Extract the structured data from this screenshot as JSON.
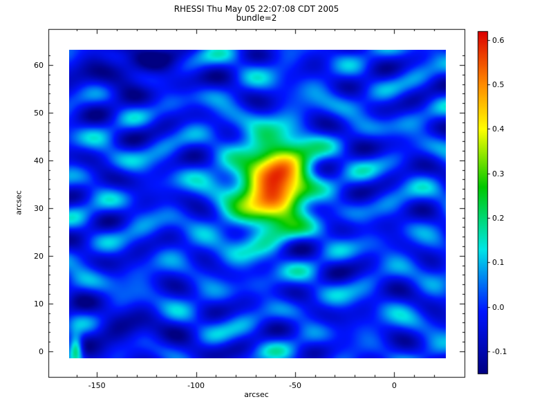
{
  "chart_data": {
    "type": "heatmap",
    "title": "RHESSI Thu May 05 22:07:08 CDT 2005",
    "subtitle": "bundle=2",
    "xlabel": "arcsec",
    "ylabel": "arcsec",
    "x_range": [
      -164,
      26
    ],
    "y_range": [
      -1.5,
      63.2
    ],
    "x_ticks": [
      -150,
      -100,
      -50,
      0
    ],
    "x_minor_step": 10,
    "y_ticks": [
      0,
      10,
      20,
      30,
      40,
      50,
      60
    ],
    "y_minor_step": 2,
    "value_range": [
      -0.15,
      0.62
    ],
    "grid": false,
    "legend_position": "colorbar-right",
    "peak": {
      "x": -60,
      "y": 35,
      "value": 0.62
    },
    "colorbar_ticks": [
      {
        "value": 0.6,
        "label": "0.6"
      },
      {
        "value": 0.5,
        "label": "0.5"
      },
      {
        "value": 0.4,
        "label": "0.4"
      },
      {
        "value": 0.3,
        "label": "0.3"
      },
      {
        "value": 0.2,
        "label": "0.2"
      },
      {
        "value": 0.1,
        "label": "0.1"
      },
      {
        "value": 0.0,
        "label": "0.0"
      },
      {
        "value": -0.1,
        "label": "-0.1"
      }
    ],
    "colormap_stops": [
      {
        "v": -0.15,
        "c": "#000082"
      },
      {
        "v": -0.01,
        "c": "#0014ff"
      },
      {
        "v": 0.13,
        "c": "#00e6e6"
      },
      {
        "v": 0.27,
        "c": "#00c800"
      },
      {
        "v": 0.4,
        "c": "#ffff00"
      },
      {
        "v": 0.5,
        "c": "#ff8c00"
      },
      {
        "v": 0.62,
        "c": "#dc0000"
      }
    ],
    "sources": [
      {
        "x": -59,
        "y": 35.5,
        "sx": 10.5,
        "sy": 6.0,
        "a": 0.45
      },
      {
        "x": -70,
        "y": 32.5,
        "sx": 13,
        "sy": 7.5,
        "a": 0.18
      },
      {
        "x": -48,
        "y": 38,
        "sx": 8,
        "sy": 6,
        "a": 0.08
      },
      {
        "x": -160.5,
        "y": 0.5,
        "sx": 2.5,
        "sy": 2,
        "a": 0.3
      },
      {
        "x": -135,
        "y": 59,
        "sx": 18,
        "sy": 4,
        "a": -0.12
      },
      {
        "x": -140,
        "y": 3,
        "sx": 20,
        "sy": 4,
        "a": -0.08
      }
    ],
    "background_waves": [
      [
        0.045,
        55,
        9.5,
        1.0
      ],
      [
        0.04,
        -38,
        12,
        2.7
      ],
      [
        0.035,
        70,
        -8.2,
        5.1
      ],
      [
        0.03,
        28,
        10.5,
        0.6
      ],
      [
        0.025,
        -45,
        7.5,
        4.0
      ],
      [
        0.02,
        90,
        14,
        3.3
      ]
    ]
  }
}
